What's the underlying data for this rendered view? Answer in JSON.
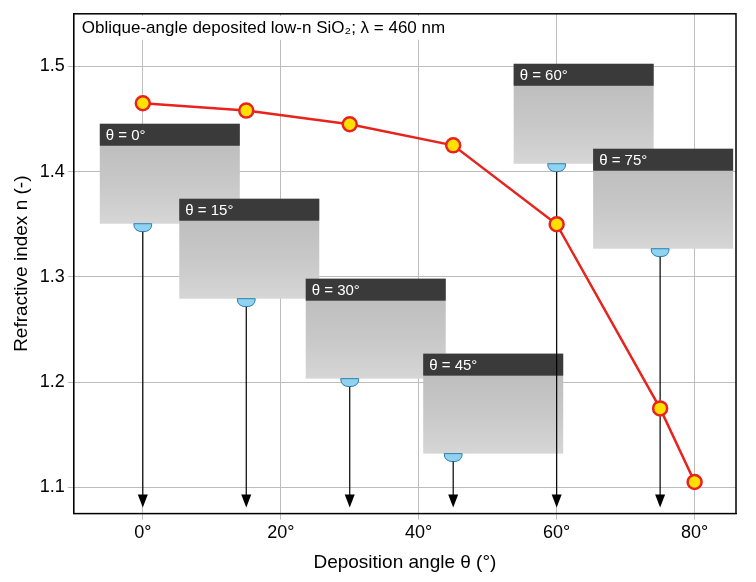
{
  "chart_data": {
    "type": "line",
    "title": "Oblique-angle deposited low-n SiO₂; λ = 460 nm",
    "x_label": "Deposition angle θ (°)",
    "y_label": "Refractive index n (-)",
    "x": [
      0,
      15,
      30,
      45,
      60,
      75,
      80
    ],
    "values": [
      1.465,
      1.458,
      1.445,
      1.425,
      1.35,
      1.175,
      1.105
    ],
    "color": "#e8231e",
    "marker": "circle",
    "xlim": [
      -10,
      86
    ],
    "xticks": [
      {
        "value": 0,
        "label": "0°"
      },
      {
        "value": 20,
        "label": "20°"
      },
      {
        "value": 40,
        "label": "40°"
      },
      {
        "value": 60,
        "label": "60°"
      },
      {
        "value": 80,
        "label": "80°"
      }
    ],
    "ylim": [
      1.075,
      1.55
    ],
    "yticks": [
      1.1,
      1.2,
      1.3,
      1.4,
      1.5
    ],
    "grid": true,
    "annotations": [
      {
        "text": "θ = 0°",
        "x": 0
      },
      {
        "text": "θ = 15°",
        "x": 15
      },
      {
        "text": "θ = 30°",
        "x": 30
      },
      {
        "text": "θ = 45°",
        "x": 45
      },
      {
        "text": "θ = 60°",
        "x": 60
      },
      {
        "text": "θ = 75°",
        "x": 75
      }
    ]
  }
}
